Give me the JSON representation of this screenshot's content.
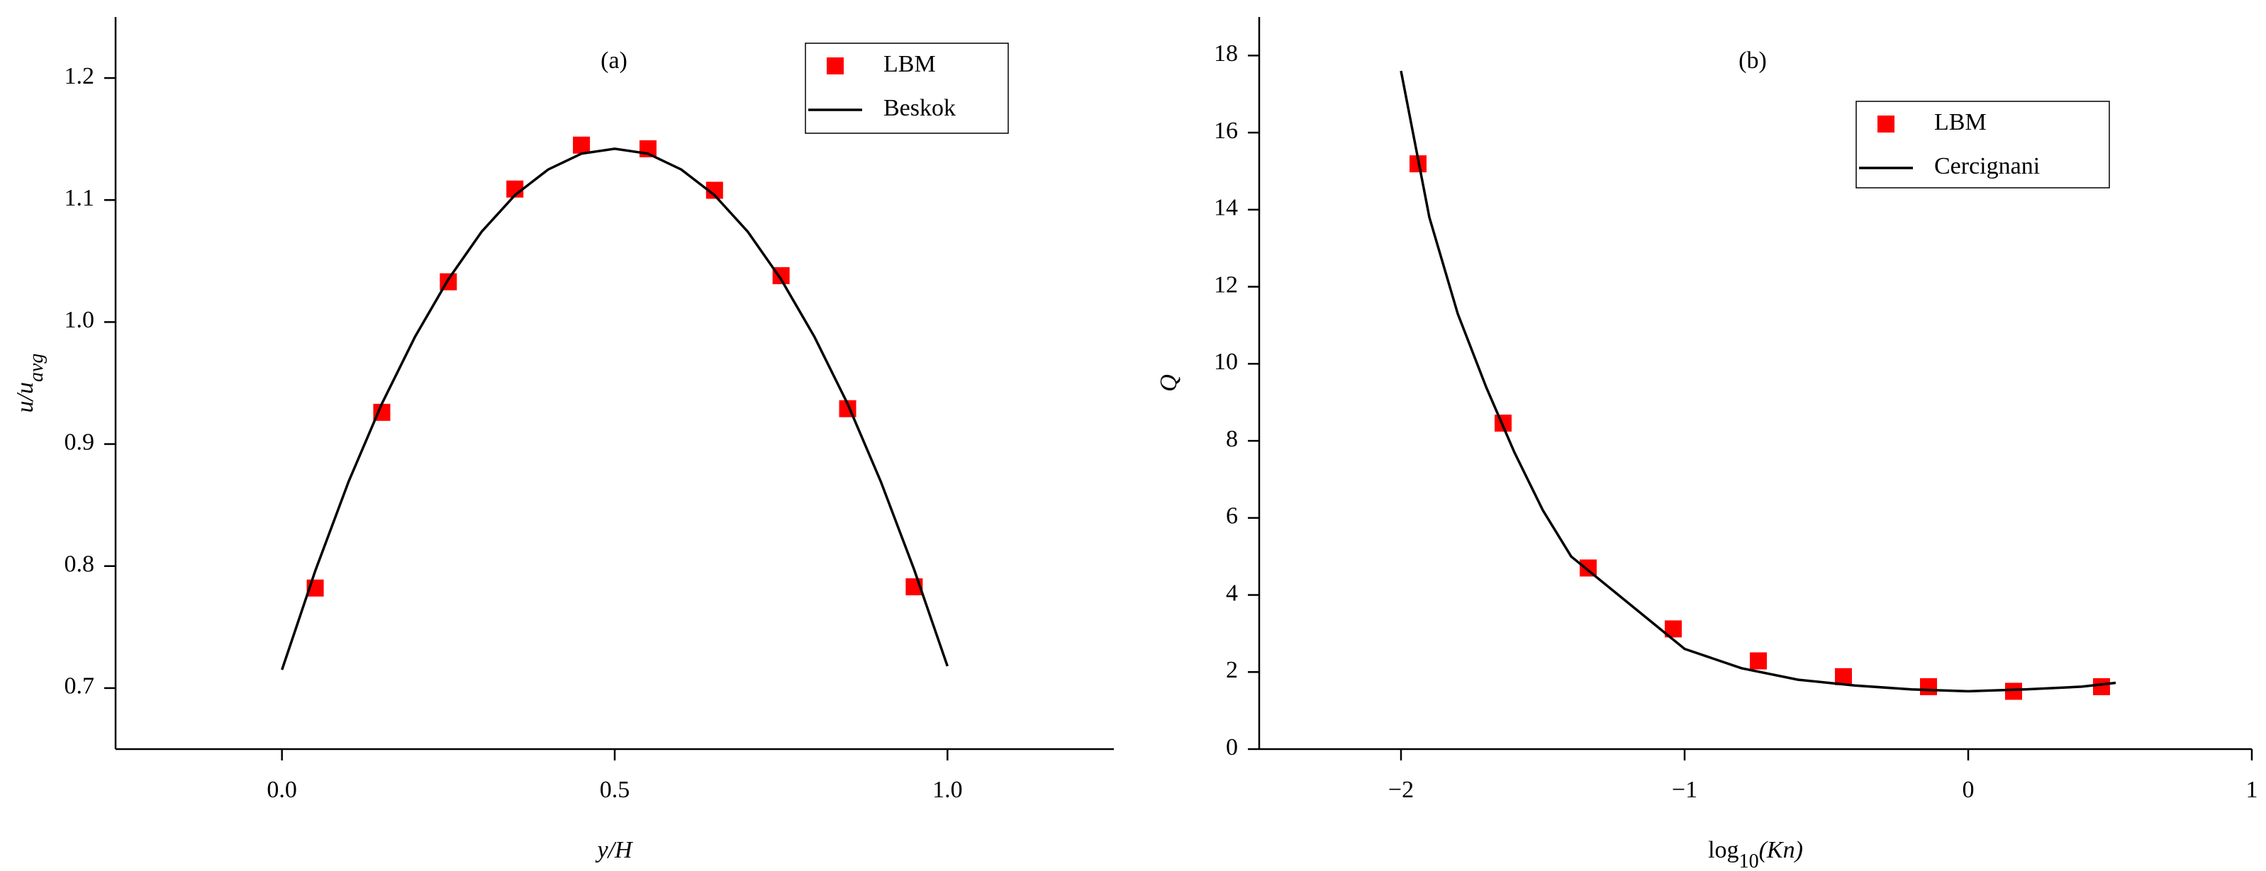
{
  "chart_data": [
    {
      "type": "line",
      "annotation": "(a)",
      "x_label": "y/H",
      "y_label_parts": [
        "u/u",
        "avg"
      ],
      "xlim": [
        -0.25,
        1.25
      ],
      "xticks": [
        {
          "value": 0,
          "label": "0.0"
        },
        0.5,
        {
          "value": 1,
          "label": "1.0"
        }
      ],
      "ylim": [
        0.65,
        1.25
      ],
      "yticks": [
        0.7,
        0.8,
        0.9,
        {
          "value": 1,
          "label": "1.0"
        },
        1.1,
        1.2
      ],
      "legend": "upper right",
      "series": [
        {
          "name": "LBM",
          "color": "#ff0000",
          "marker": "square",
          "x": [
            0.05,
            0.15,
            0.25,
            0.35,
            0.45,
            0.55,
            0.65,
            0.75,
            0.85,
            0.95
          ],
          "values": [
            0.782,
            0.926,
            1.033,
            1.109,
            1.145,
            1.142,
            1.108,
            1.038,
            0.929,
            0.783
          ]
        },
        {
          "name": "Beskok",
          "color": "#000000",
          "marker": "line",
          "x": [
            0,
            0.05,
            0.1,
            0.15,
            0.2,
            0.25,
            0.3,
            0.35,
            0.4,
            0.45,
            0.5,
            0.55,
            0.6,
            0.65,
            0.7,
            0.75,
            0.8,
            0.85,
            0.9,
            0.95,
            1
          ],
          "values": [
            0.715,
            0.796,
            0.869,
            0.933,
            0.988,
            1.035,
            1.074,
            1.104,
            1.125,
            1.138,
            1.142,
            1.138,
            1.125,
            1.104,
            1.074,
            1.035,
            0.988,
            0.933,
            0.869,
            0.797,
            0.718
          ]
        }
      ]
    },
    {
      "type": "line",
      "annotation": "(b)",
      "x_label_parts": [
        "log",
        "10",
        "(Kn)"
      ],
      "y_label": "Q",
      "xlim": [
        -2.5,
        1
      ],
      "xticks": [
        {
          "value": -2,
          "label": "−2"
        },
        {
          "value": -1,
          "label": "−1"
        },
        0,
        1
      ],
      "ylim": [
        0,
        19
      ],
      "yticks": [
        0,
        2,
        4,
        6,
        8,
        10,
        12,
        14,
        16,
        18
      ],
      "legend": "upper right",
      "series": [
        {
          "name": "LBM",
          "color": "#ff0000",
          "marker": "square",
          "x": [
            -1.94,
            -1.64,
            -1.34,
            -1.04,
            -0.74,
            -0.44,
            -0.14,
            0.16,
            0.47
          ],
          "values": [
            15.19,
            8.46,
            4.7,
            3.12,
            2.29,
            1.88,
            1.62,
            1.5,
            1.62
          ]
        },
        {
          "name": "Cercignani",
          "color": "#000000",
          "marker": "line",
          "x": [
            -2,
            -1.9,
            -1.8,
            -1.7,
            -1.6,
            -1.5,
            -1.4,
            -1.3,
            -1.2,
            -1.1,
            -1,
            -0.8,
            -0.6,
            -0.4,
            -0.2,
            0,
            0.2,
            0.4,
            0.52
          ],
          "values": [
            17.6,
            13.8,
            11.3,
            9.4,
            7.7,
            6.2,
            5.0,
            4.4,
            3.8,
            3.2,
            2.6,
            2.1,
            1.8,
            1.65,
            1.55,
            1.5,
            1.55,
            1.62,
            1.72
          ]
        }
      ]
    }
  ]
}
